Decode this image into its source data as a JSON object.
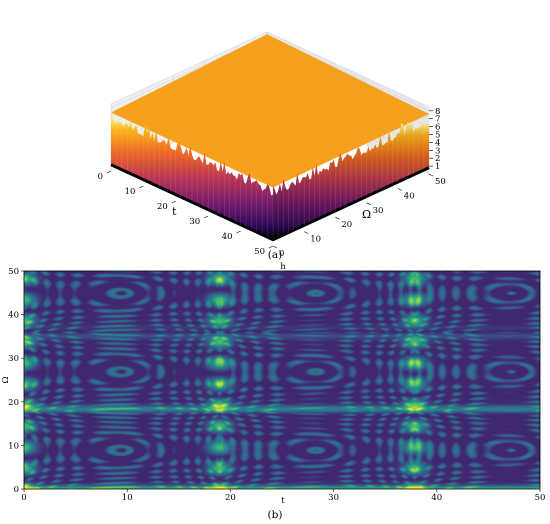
{
  "chart_data": [
    {
      "type": "surface3d",
      "panel_label": "(a)",
      "axes": {
        "t": {
          "label": "t",
          "range": [
            0,
            50
          ],
          "ticks": [
            "0",
            "10",
            "20",
            "30",
            "40",
            "50"
          ]
        },
        "omega": {
          "label": "Ω",
          "range": [
            0,
            50
          ],
          "ticks": [
            "0",
            "10",
            "20",
            "30",
            "40",
            "50"
          ]
        },
        "z": {
          "label": "",
          "range": [
            0,
            8.5
          ],
          "ticks": [
            "1",
            "2",
            "3",
            "4",
            "5",
            "6",
            "7",
            "8"
          ]
        }
      },
      "colormap": "inferno",
      "surface_floor": 0.8,
      "surface_peak": 8.4,
      "grid": true
    },
    {
      "type": "heatmap",
      "panel_label": "(b)",
      "title": "h",
      "xlabel": "t",
      "ylabel": "Ω",
      "xlim": [
        0,
        50
      ],
      "ylim": [
        0,
        50
      ],
      "xticks": [
        "0",
        "10",
        "20",
        "30",
        "40",
        "50"
      ],
      "yticks": [
        "0",
        "10",
        "20",
        "30",
        "40",
        "50"
      ],
      "colormap": "viridis",
      "cell_period_t": 18.9,
      "cell_period_omega": 18.0
    }
  ],
  "colors": {
    "inferno": [
      "#000004",
      "#320a5e",
      "#781c6d",
      "#bc3754",
      "#ed6925",
      "#fbb61a",
      "#fcffa4"
    ],
    "viridis": [
      "#440154",
      "#3b528b",
      "#21918c",
      "#5ec962",
      "#fde725"
    ]
  }
}
